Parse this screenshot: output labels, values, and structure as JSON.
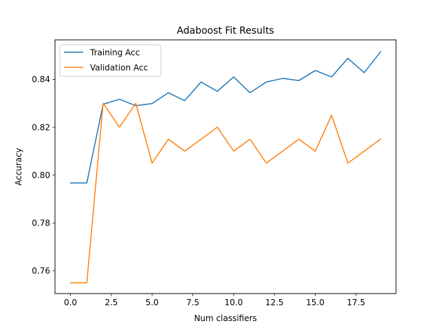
{
  "chart_data": {
    "type": "line",
    "title": "Adaboost Fit Results",
    "xlabel": "Num classifiers",
    "ylabel": "Accuracy",
    "xlim": [
      -0.95,
      19.95
    ],
    "ylim": [
      0.7505,
      0.8565
    ],
    "xticks": [
      0.0,
      2.5,
      5.0,
      7.5,
      10.0,
      12.5,
      15.0,
      17.5
    ],
    "xtick_labels": [
      "0.0",
      "2.5",
      "5.0",
      "7.5",
      "10.0",
      "12.5",
      "15.0",
      "17.5"
    ],
    "yticks": [
      0.76,
      0.78,
      0.8,
      0.82,
      0.84
    ],
    "ytick_labels": [
      "0.76",
      "0.78",
      "0.80",
      "0.82",
      "0.84"
    ],
    "grid": false,
    "legend_position": "top-left",
    "x": [
      0,
      1,
      2,
      3,
      4,
      5,
      6,
      7,
      8,
      9,
      10,
      11,
      12,
      13,
      14,
      15,
      16,
      17,
      18,
      19
    ],
    "series": [
      {
        "name": "Training Acc",
        "color": "#1f77b4",
        "values": [
          0.7967,
          0.7967,
          0.8296,
          0.8317,
          0.829,
          0.8299,
          0.8344,
          0.8311,
          0.8389,
          0.835,
          0.841,
          0.8344,
          0.8389,
          0.8404,
          0.8395,
          0.8437,
          0.841,
          0.8488,
          0.8428,
          0.8515
        ]
      },
      {
        "name": "Validation Acc",
        "color": "#ff7f0e",
        "values": [
          0.755,
          0.755,
          0.83,
          0.82,
          0.83,
          0.805,
          0.815,
          0.81,
          0.815,
          0.82,
          0.81,
          0.815,
          0.805,
          0.81,
          0.815,
          0.81,
          0.825,
          0.805,
          0.81,
          0.815
        ]
      }
    ]
  }
}
